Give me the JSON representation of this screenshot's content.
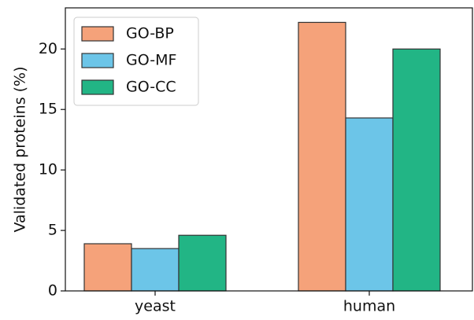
{
  "chart_data": {
    "type": "bar",
    "y_label": "Validated proteins (%)",
    "categories": [
      "yeast",
      "human"
    ],
    "series": [
      {
        "name": "GO-BP",
        "color": "#f5a27a",
        "values": [
          3.9,
          22.2
        ]
      },
      {
        "name": "GO-MF",
        "color": "#6cc5e8",
        "values": [
          3.5,
          14.3
        ]
      },
      {
        "name": "GO-CC",
        "color": "#22b585",
        "values": [
          4.6,
          20.0
        ]
      }
    ],
    "ylim": [
      0,
      23.4
    ],
    "yticks": [
      0,
      5,
      10,
      15,
      20
    ],
    "grid": false,
    "legend": "upper-left"
  }
}
